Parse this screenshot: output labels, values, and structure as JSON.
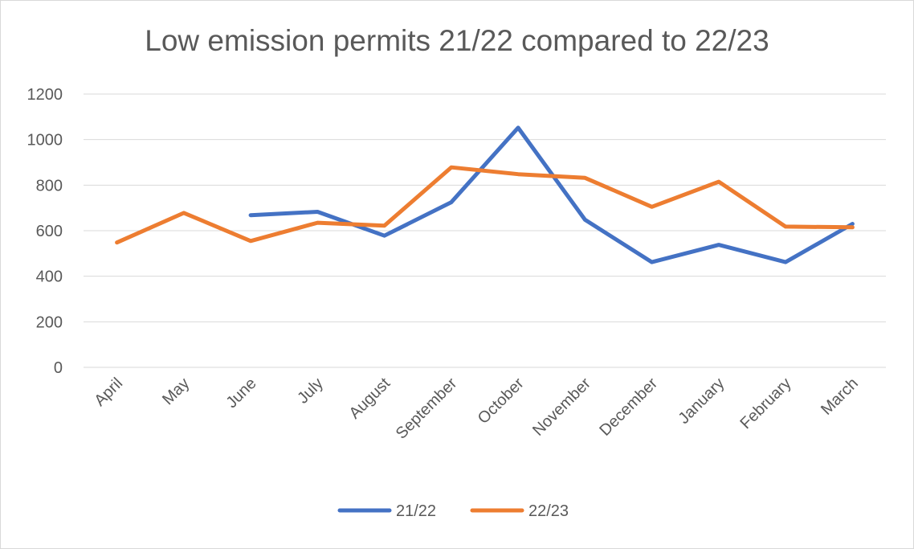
{
  "chart_data": {
    "type": "line",
    "title": "Low emission permits 21/22 compared to 22/23",
    "xlabel": "",
    "ylabel": "",
    "categories": [
      "April",
      "May",
      "June",
      "July",
      "August",
      "September",
      "October",
      "November",
      "December",
      "January",
      "February",
      "March"
    ],
    "ylim": [
      0,
      1200
    ],
    "yticks": [
      "0",
      "200",
      "400",
      "600",
      "800",
      "1000",
      "1200"
    ],
    "grid": true,
    "legend_position": "bottom",
    "series": [
      {
        "name": "21/22",
        "color": "#4472C4",
        "values": [
          null,
          null,
          668,
          683,
          578,
          725,
          1052,
          648,
          462,
          538,
          462,
          630
        ]
      },
      {
        "name": "22/23",
        "color": "#ED7D31",
        "values": [
          548,
          678,
          555,
          635,
          622,
          878,
          848,
          832,
          705,
          815,
          618,
          615
        ]
      }
    ]
  }
}
